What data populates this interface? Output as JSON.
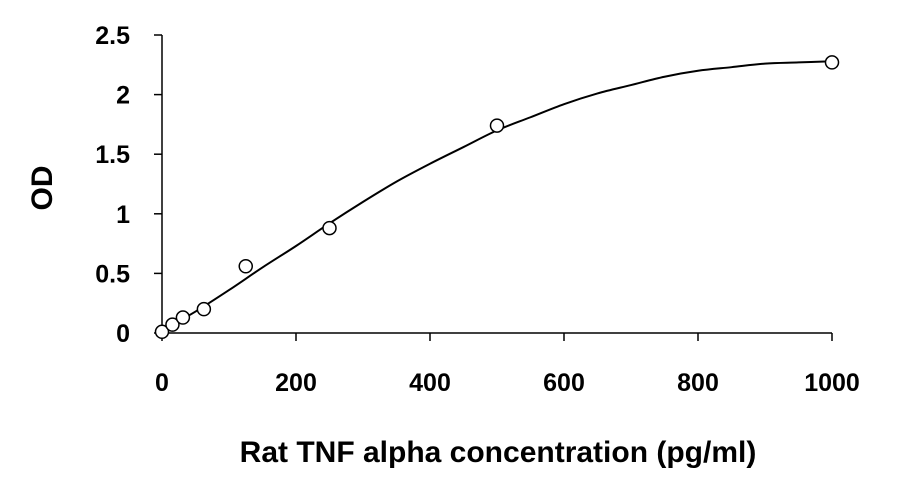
{
  "chart_data": {
    "type": "scatter",
    "title": "",
    "xlabel": "Rat TNF alpha concentration (pg/ml)",
    "ylabel": "OD",
    "xlim": [
      0,
      1000
    ],
    "ylim": [
      0,
      2.5
    ],
    "xticks": [
      0,
      200,
      400,
      600,
      800,
      1000
    ],
    "yticks": [
      0,
      0.5,
      1,
      1.5,
      2,
      2.5
    ],
    "xtick_labels": [
      "0",
      "200",
      "400",
      "600",
      "800",
      "1000"
    ],
    "ytick_labels": [
      "0",
      "0.5",
      "1",
      "1.5",
      "2",
      "2.5"
    ],
    "grid": false,
    "legend": "none",
    "series": [
      {
        "marker": "open-circle",
        "x": [
          0,
          15.6,
          31.2,
          62.5,
          125,
          250,
          500,
          1000
        ],
        "y": [
          0.01,
          0.07,
          0.13,
          0.2,
          0.56,
          0.88,
          1.74,
          2.27
        ]
      }
    ],
    "trendline": {
      "type": "polynomial",
      "x": [
        0,
        50,
        100,
        150,
        200,
        250,
        300,
        350,
        400,
        450,
        500,
        550,
        600,
        650,
        700,
        750,
        800,
        850,
        900,
        950,
        1000
      ],
      "y": [
        0.02,
        0.18,
        0.36,
        0.55,
        0.73,
        0.92,
        1.1,
        1.27,
        1.42,
        1.56,
        1.7,
        1.81,
        1.92,
        2.01,
        2.08,
        2.15,
        2.2,
        2.23,
        2.26,
        2.27,
        2.28
      ]
    },
    "colors": {
      "marker_stroke": "#000000",
      "marker_fill": "#ffffff",
      "line": "#000000",
      "axis": "#000000"
    }
  }
}
